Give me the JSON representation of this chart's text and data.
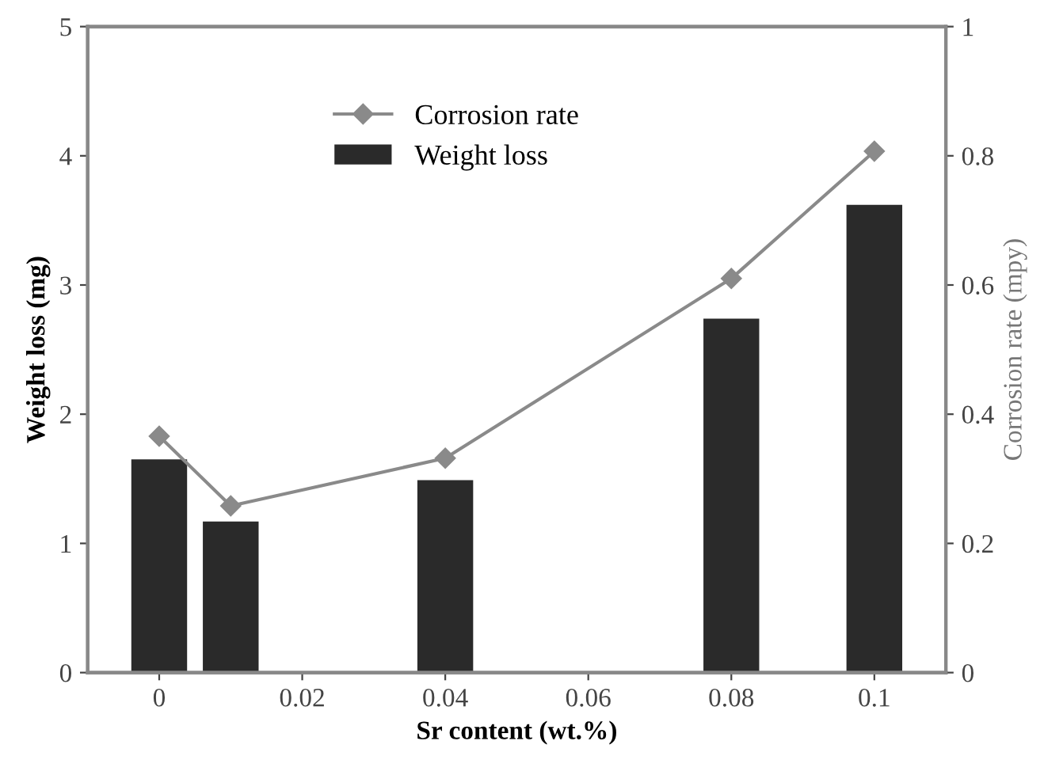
{
  "chart_data": {
    "type": "bar",
    "xlabel": "Sr content (wt.%)",
    "ylabel": "Weight loss (mg)",
    "y2label": "Corrosion rate (mpy)",
    "x": [
      0,
      0.01,
      0.04,
      0.08,
      0.1
    ],
    "series": [
      {
        "name": "Corrosion rate",
        "type": "line",
        "axis": "y2",
        "color": "#8a8a8a",
        "marker": "diamond",
        "line_style": "solid",
        "values": [
          0.366,
          0.258,
          0.332,
          0.61,
          0.807
        ]
      },
      {
        "name": "Weight loss",
        "color": "#2a2a2a",
        "values": [
          1.65,
          1.17,
          1.49,
          2.74,
          3.62
        ]
      }
    ],
    "xlim": [
      -0.01,
      0.11
    ],
    "xticks": [
      0,
      0.02,
      0.04,
      0.06,
      0.08,
      0.1
    ],
    "ylim": [
      0,
      5
    ],
    "yticks": [
      0,
      1,
      2,
      3,
      4,
      5
    ],
    "y2lim": [
      0,
      1
    ],
    "y2ticks": [
      0,
      0.2,
      0.4,
      0.6,
      0.8,
      1
    ],
    "grid": false,
    "legend": "top"
  }
}
